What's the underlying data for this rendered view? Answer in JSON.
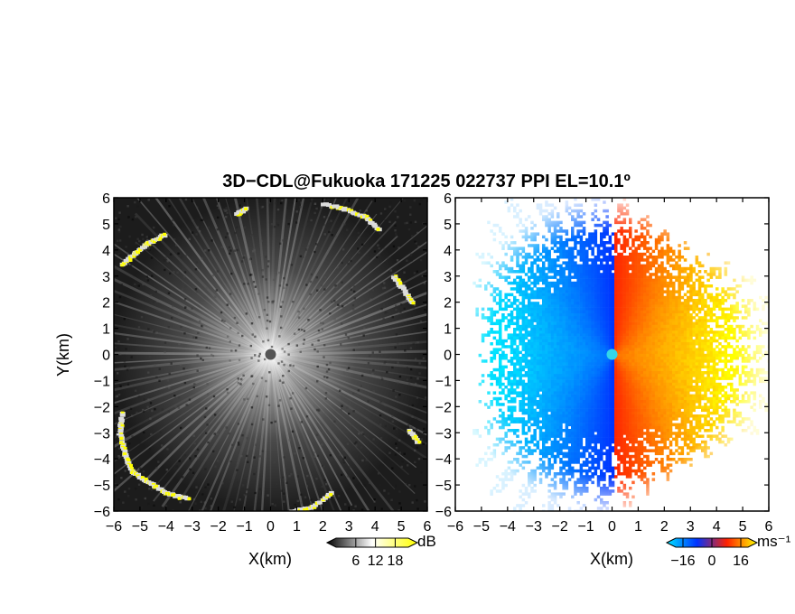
{
  "title": "3D−CDL@Fukuoka 171225 022737 PPI EL=10.1º",
  "chart_data": [
    {
      "type": "heatmap",
      "panel": "left",
      "xlabel": "X(km)",
      "ylabel": "Y(km)",
      "xlim": [
        -6,
        6
      ],
      "ylim": [
        -6,
        6
      ],
      "ticks": [
        -6,
        -5,
        -4,
        -3,
        -2,
        -1,
        0,
        1,
        2,
        3,
        4,
        5,
        6
      ],
      "tick_labels": [
        "−6",
        "−5",
        "−4",
        "−3",
        "−2",
        "−1",
        "0",
        "1",
        "2",
        "3",
        "4",
        "5",
        "6"
      ],
      "grid": false,
      "colorbar": {
        "unit": "dB",
        "range": [
          0,
          22
        ],
        "ticks": [
          6,
          12,
          18
        ],
        "tick_labels": [
          "6",
          "12",
          "18"
        ],
        "colors": [
          "#000000",
          "#ffffff",
          "#ffff00"
        ]
      },
      "features": {
        "strong_echo_color": "#ffff00",
        "strong_echo_arcs_xy_km": [
          [
            [
              -5.7,
              3.5
            ],
            [
              -5.2,
              3.9
            ],
            [
              -4.7,
              4.3
            ],
            [
              -4.1,
              4.6
            ]
          ],
          [
            [
              -1.3,
              5.4
            ],
            [
              -1.0,
              5.6
            ]
          ],
          [
            [
              2.0,
              5.8
            ],
            [
              2.8,
              5.6
            ],
            [
              3.6,
              5.3
            ],
            [
              4.1,
              4.8
            ]
          ],
          [
            [
              4.7,
              3.0
            ],
            [
              5.0,
              2.6
            ],
            [
              5.4,
              2.0
            ]
          ],
          [
            [
              5.3,
              -2.9
            ],
            [
              5.6,
              -3.3
            ]
          ],
          [
            [
              -5.7,
              -2.2
            ],
            [
              -5.8,
              -3.0
            ],
            [
              -5.6,
              -3.8
            ],
            [
              -5.3,
              -4.5
            ],
            [
              -4.6,
              -4.9
            ],
            [
              -4.0,
              -5.3
            ],
            [
              -3.2,
              -5.5
            ]
          ],
          [
            [
              0.8,
              -6.0
            ],
            [
              1.6,
              -5.8
            ],
            [
              2.3,
              -5.3
            ]
          ]
        ]
      }
    },
    {
      "type": "heatmap",
      "panel": "right",
      "xlabel": "X(km)",
      "ylabel": "",
      "xlim": [
        -6,
        6
      ],
      "ylim": [
        -6,
        6
      ],
      "ticks": [
        -6,
        -5,
        -4,
        -3,
        -2,
        -1,
        0,
        1,
        2,
        3,
        4,
        5,
        6
      ],
      "tick_labels": [
        "−6",
        "−5",
        "−4",
        "−3",
        "−2",
        "−1",
        "0",
        "1",
        "2",
        "3",
        "4",
        "5",
        "6"
      ],
      "grid": false,
      "colorbar": {
        "unit": "ms⁻¹",
        "range": [
          -20,
          20
        ],
        "ticks": [
          -16,
          0,
          16
        ],
        "tick_labels": [
          "−16",
          "0",
          "16"
        ],
        "colors": [
          "#00e5ff",
          "#0033ff",
          "#ff2200",
          "#ffff00"
        ]
      },
      "features": {
        "negative_velocity_side": "west",
        "positive_velocity_side": "east"
      }
    }
  ]
}
